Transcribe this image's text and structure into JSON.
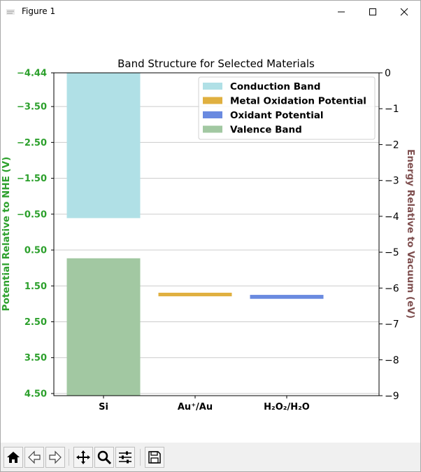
{
  "window": {
    "title": "Figure 1"
  },
  "toolbar": {
    "buttons": [
      "home-icon",
      "back-arrow-icon",
      "forward-arrow-icon",
      "pan-icon",
      "zoom-icon",
      "configure-subplots-icon",
      "save-icon"
    ]
  },
  "chart_data": {
    "type": "bar",
    "title": "Band Structure for Selected Materials",
    "categories": [
      "Si",
      "Au⁺/Au",
      "H₂O₂/H₂O"
    ],
    "left_axis": {
      "label": "Potential Relative to NHE (V)",
      "ticks": [
        "−4.44",
        "−3.50",
        "−2.50",
        "−1.50",
        "−0.50",
        "0.50",
        "1.50",
        "2.50",
        "3.50",
        "4.50"
      ],
      "tick_values": [
        -4.44,
        -3.5,
        -2.5,
        -1.5,
        -0.5,
        0.5,
        1.5,
        2.5,
        3.5,
        4.5
      ],
      "range": [
        -4.44,
        4.56
      ],
      "inverted": true,
      "color": "#2ca02c"
    },
    "right_axis": {
      "label": "Energy Relative to Vacuum (eV)",
      "ticks": [
        "0",
        "−1",
        "−2",
        "−3",
        "−4",
        "−5",
        "−6",
        "−7",
        "−8",
        "−9"
      ],
      "tick_values": [
        0,
        -1,
        -2,
        -3,
        -4,
        -5,
        -6,
        -7,
        -8,
        -9
      ],
      "range": [
        0,
        -9
      ],
      "color": "#7f4f4f"
    },
    "grid": true,
    "legend_position": "top-right",
    "series": [
      {
        "name": "Conduction Band",
        "color": "#b0e0e6",
        "bars": [
          {
            "category": "Si",
            "from_eV": 0,
            "to_eV": -4.05
          }
        ]
      },
      {
        "name": "Metal Oxidation Potential",
        "color": "#e0b040",
        "bars": [
          {
            "category": "Au⁺/Au",
            "from_eV": -6.13,
            "to_eV": -6.23
          }
        ]
      },
      {
        "name": "Oxidant Potential",
        "color": "#6a8ae0",
        "bars": [
          {
            "category": "H₂O₂/H₂O",
            "from_eV": -6.19,
            "to_eV": -6.3
          }
        ]
      },
      {
        "name": "Valence Band",
        "color": "#a2c8a2",
        "bars": [
          {
            "category": "Si",
            "from_eV": -5.17,
            "to_eV": -9.0
          }
        ]
      }
    ]
  }
}
